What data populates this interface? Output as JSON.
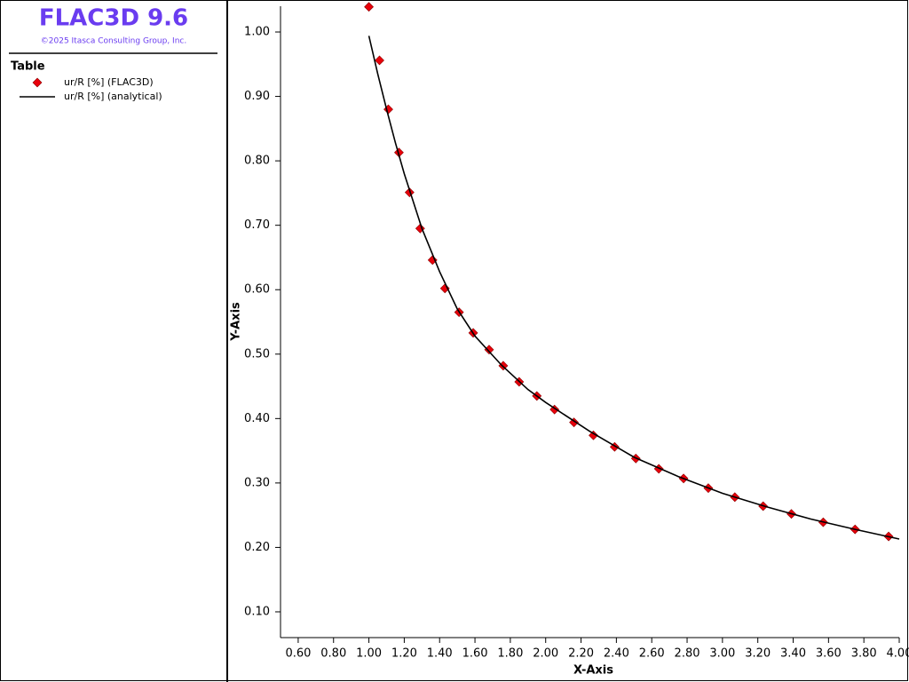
{
  "app": {
    "title": "FLAC3D 9.6",
    "copyright": "©2025 Itasca Consulting Group, Inc.",
    "legend_heading": "Table"
  },
  "chart_data": {
    "type": "scatter",
    "xlabel": "X-Axis",
    "ylabel": "Y-Axis",
    "xlim": [
      0.5,
      4.0
    ],
    "ylim": [
      0.06,
      1.04
    ],
    "grid": false,
    "xticks": [
      {
        "value": 0.6,
        "label": "0.60"
      },
      {
        "value": 0.8,
        "label": "0.80"
      },
      {
        "value": 1.0,
        "label": "1.00"
      },
      {
        "value": 1.2,
        "label": "1.20"
      },
      {
        "value": 1.4,
        "label": "1.40"
      },
      {
        "value": 1.6,
        "label": "1.60"
      },
      {
        "value": 1.8,
        "label": "1.80"
      },
      {
        "value": 2.0,
        "label": "2.00"
      },
      {
        "value": 2.2,
        "label": "2.20"
      },
      {
        "value": 2.4,
        "label": "2.40"
      },
      {
        "value": 2.6,
        "label": "2.60"
      },
      {
        "value": 2.8,
        "label": "2.80"
      },
      {
        "value": 3.0,
        "label": "3.00"
      },
      {
        "value": 3.2,
        "label": "3.20"
      },
      {
        "value": 3.4,
        "label": "3.40"
      },
      {
        "value": 3.6,
        "label": "3.60"
      },
      {
        "value": 3.8,
        "label": "3.80"
      },
      {
        "value": 4.0,
        "label": "4.00"
      }
    ],
    "yticks": [
      {
        "value": 0.1,
        "label": "0.10"
      },
      {
        "value": 0.2,
        "label": "0.20"
      },
      {
        "value": 0.3,
        "label": "0.30"
      },
      {
        "value": 0.4,
        "label": "0.40"
      },
      {
        "value": 0.5,
        "label": "0.50"
      },
      {
        "value": 0.6,
        "label": "0.60"
      },
      {
        "value": 0.7,
        "label": "0.70"
      },
      {
        "value": 0.8,
        "label": "0.80"
      },
      {
        "value": 0.9,
        "label": "0.90"
      },
      {
        "value": 1.0,
        "label": "1.00"
      }
    ],
    "series": [
      {
        "name": "ur/R [%] (FLAC3D)",
        "mode": "markers",
        "color": "#e8000b",
        "x": [
          1.0,
          1.06,
          1.11,
          1.17,
          1.23,
          1.29,
          1.36,
          1.43,
          1.51,
          1.59,
          1.68,
          1.76,
          1.85,
          1.95,
          2.05,
          2.16,
          2.27,
          2.39,
          2.51,
          2.64,
          2.78,
          2.92,
          3.07,
          3.23,
          3.39,
          3.57,
          3.75,
          3.94
        ],
        "values": [
          1.039,
          0.956,
          0.88,
          0.813,
          0.751,
          0.695,
          0.646,
          0.602,
          0.565,
          0.533,
          0.507,
          0.482,
          0.457,
          0.435,
          0.414,
          0.394,
          0.374,
          0.356,
          0.338,
          0.322,
          0.307,
          0.292,
          0.278,
          0.264,
          0.252,
          0.239,
          0.228,
          0.217
        ]
      },
      {
        "name": "ur/R [%] (analytical)",
        "mode": "line",
        "color": "#000000",
        "x": [
          1.0,
          1.05,
          1.1,
          1.15,
          1.2,
          1.3,
          1.4,
          1.5,
          1.6,
          1.75,
          1.9,
          2.0,
          2.25,
          2.5,
          2.75,
          3.0,
          3.25,
          3.5,
          3.75,
          4.0
        ],
        "values": [
          0.994,
          0.935,
          0.88,
          0.828,
          0.78,
          0.695,
          0.628,
          0.57,
          0.528,
          0.483,
          0.445,
          0.425,
          0.38,
          0.34,
          0.31,
          0.284,
          0.263,
          0.244,
          0.228,
          0.213
        ]
      }
    ]
  }
}
